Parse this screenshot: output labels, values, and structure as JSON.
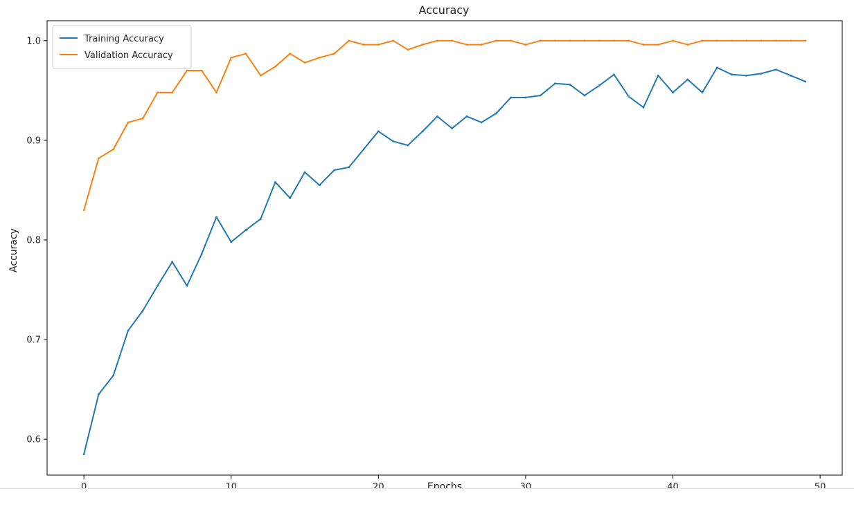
{
  "chart_data": {
    "type": "line",
    "title": "Accuracy",
    "xlabel": "Epochs",
    "ylabel": "Accuracy",
    "xlim": [
      -2.5,
      51.5
    ],
    "ylim": [
      0.564,
      1.02
    ],
    "xticks": [
      0,
      10,
      20,
      30,
      40,
      50
    ],
    "yticks": [
      0.6,
      0.7,
      0.8,
      0.9,
      1.0
    ],
    "xtick_labels": [
      "0",
      "10",
      "20",
      "30",
      "40",
      "50"
    ],
    "ytick_labels": [
      "0.6",
      "0.7",
      "0.8",
      "0.9",
      "1.0"
    ],
    "grid": false,
    "legend_position": "top-left",
    "x": [
      0,
      1,
      2,
      3,
      4,
      5,
      6,
      7,
      8,
      9,
      10,
      11,
      12,
      13,
      14,
      15,
      16,
      17,
      18,
      19,
      20,
      21,
      22,
      23,
      24,
      25,
      26,
      27,
      28,
      29,
      30,
      31,
      32,
      33,
      34,
      35,
      36,
      37,
      38,
      39,
      40,
      41,
      42,
      43,
      44,
      45,
      46,
      47,
      48,
      49
    ],
    "series": [
      {
        "name": "Training Accuracy",
        "color": "#1f77b4",
        "values": [
          0.585,
          0.645,
          0.664,
          0.709,
          0.729,
          0.754,
          0.778,
          0.754,
          0.786,
          0.823,
          0.798,
          0.81,
          0.821,
          0.858,
          0.842,
          0.868,
          0.855,
          0.87,
          0.873,
          0.891,
          0.909,
          0.899,
          0.895,
          0.909,
          0.924,
          0.912,
          0.924,
          0.918,
          0.927,
          0.943,
          0.943,
          0.945,
          0.957,
          0.956,
          0.945,
          0.955,
          0.966,
          0.944,
          0.933,
          0.965,
          0.948,
          0.961,
          0.948,
          0.973,
          0.966,
          0.965,
          0.967,
          0.971,
          0.965,
          0.959
        ]
      },
      {
        "name": "Validation Accuracy",
        "color": "#ff7f0e",
        "values": [
          0.83,
          0.882,
          0.891,
          0.918,
          0.922,
          0.948,
          0.948,
          0.97,
          0.97,
          0.948,
          0.983,
          0.987,
          0.965,
          0.974,
          0.987,
          0.978,
          0.983,
          0.987,
          1.0,
          0.996,
          0.996,
          1.0,
          0.991,
          0.996,
          1.0,
          1.0,
          0.996,
          0.996,
          1.0,
          1.0,
          0.996,
          1.0,
          1.0,
          1.0,
          1.0,
          1.0,
          1.0,
          1.0,
          0.996,
          0.996,
          1.0,
          0.996,
          1.0,
          1.0,
          1.0,
          1.0,
          1.0,
          1.0,
          1.0,
          1.0
        ]
      }
    ]
  }
}
